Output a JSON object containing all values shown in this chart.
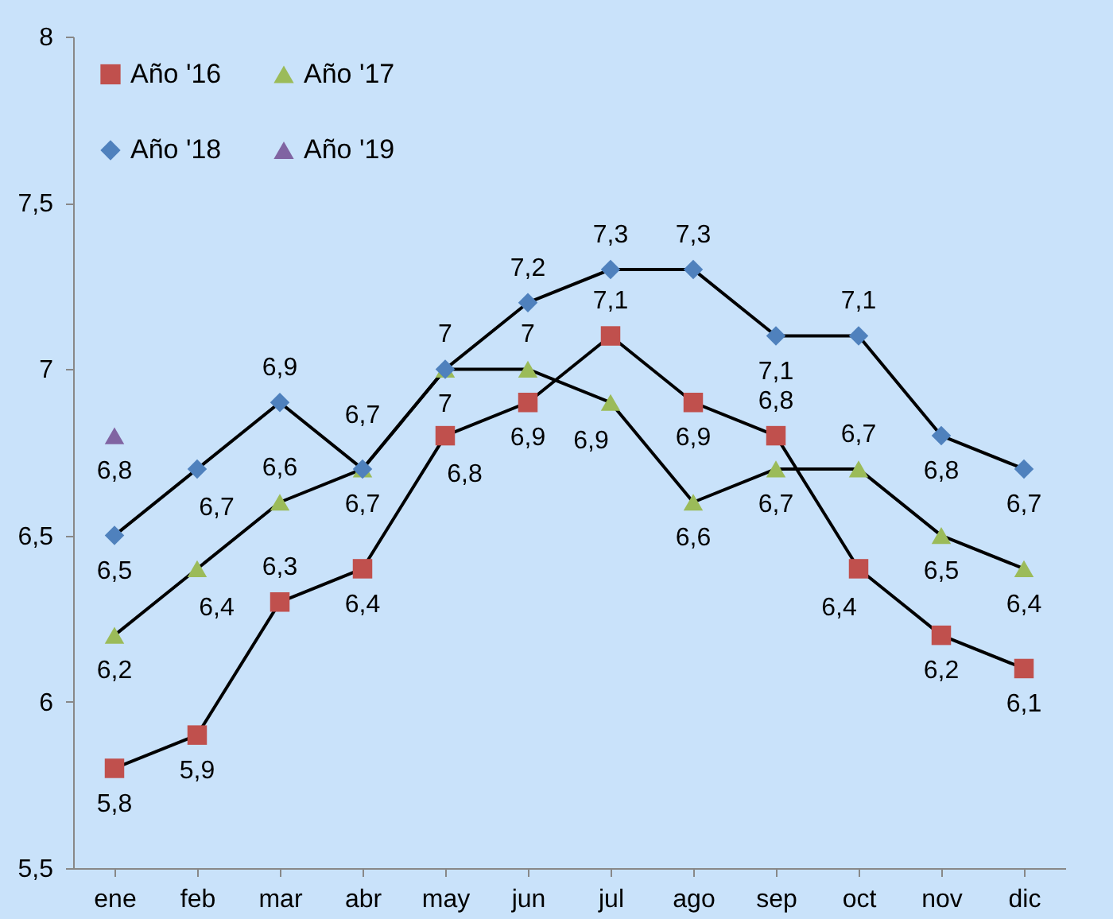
{
  "chart_data": {
    "type": "line",
    "categories": [
      "ene",
      "feb",
      "mar",
      "abr",
      "may",
      "jun",
      "jul",
      "ago",
      "sep",
      "oct",
      "nov",
      "dic"
    ],
    "ylim": [
      5.5,
      8
    ],
    "yticks": [
      {
        "value": 5.5,
        "label": "5,5"
      },
      6,
      {
        "value": 6.5,
        "label": "6,5"
      },
      7,
      {
        "value": 7.5,
        "label": "7,5"
      },
      8
    ],
    "grid": false,
    "legend": "top left",
    "series": [
      {
        "name": "Año '16",
        "color": "#c0504d",
        "marker": "square",
        "values": [
          5.8,
          5.9,
          6.3,
          6.4,
          6.8,
          6.9,
          7.1,
          6.9,
          6.8,
          6.4,
          6.2,
          6.1
        ],
        "value_labels": [
          "5,8",
          "5,9",
          "6,3",
          "6,4",
          "6,8",
          "6,9",
          "7,1",
          "6,9",
          "6,8",
          "6,4",
          "6,2",
          "6,1"
        ]
      },
      {
        "name": "Año '17",
        "color": "#9bbb59",
        "marker": "triangle",
        "values": [
          6.2,
          6.4,
          6.6,
          6.7,
          7,
          7,
          6.9,
          6.6,
          6.7,
          6.7,
          6.5,
          6.4
        ],
        "value_labels": [
          "6,2",
          "6,4",
          "6,6",
          "6,7",
          "7",
          "7",
          "6,9",
          "6,6",
          "6,7",
          "6,7",
          "6,5",
          "6,4"
        ]
      },
      {
        "name": "Año '18",
        "color": "#4f81bd",
        "marker": "diamond",
        "values": [
          6.5,
          6.7,
          6.9,
          6.7,
          7,
          7.2,
          7.3,
          7.3,
          7.1,
          7.1,
          6.8,
          6.7
        ],
        "value_labels": [
          "6,5",
          "6,7",
          "6,9",
          "6,7",
          "7",
          "7,2",
          "7,3",
          "7,3",
          "7,1",
          "7,1",
          "6,8",
          "6,7"
        ]
      },
      {
        "name": "Año '19",
        "color": "#8064a2",
        "marker": "triangle",
        "values": [
          6.8,
          null,
          null,
          null,
          null,
          null,
          null,
          null,
          null,
          null,
          null,
          null
        ],
        "value_labels": [
          "6,8",
          null,
          null,
          null,
          null,
          null,
          null,
          null,
          null,
          null,
          null,
          null
        ]
      }
    ]
  }
}
